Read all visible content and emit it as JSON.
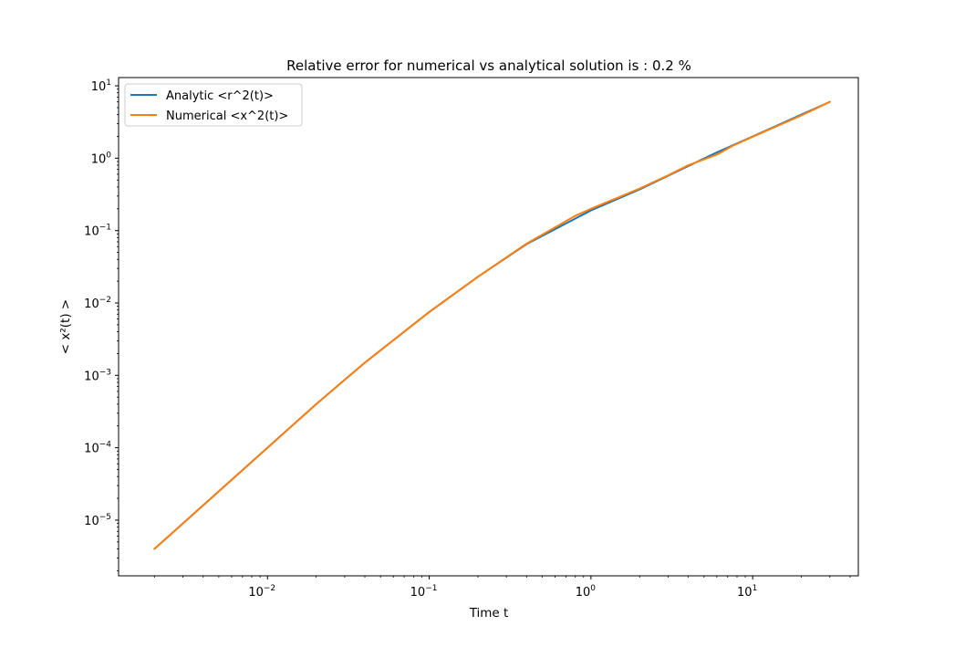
{
  "chart_data": {
    "type": "line",
    "title": "Relative error for numerical vs analytical solution is : 0.2 %",
    "xlabel": "Time t",
    "ylabel": "< x²(t) >",
    "xscale": "log",
    "yscale": "log",
    "xlim": [
      0.0012,
      45
    ],
    "ylim": [
      1.7e-06,
      13
    ],
    "x_ticks": [
      {
        "value": 0.01,
        "base": "10",
        "exp": "−2"
      },
      {
        "value": 0.1,
        "base": "10",
        "exp": "−1"
      },
      {
        "value": 1,
        "base": "10",
        "exp": "0"
      },
      {
        "value": 10,
        "base": "10",
        "exp": "1"
      }
    ],
    "y_ticks": [
      {
        "value": 1e-05,
        "base": "10",
        "exp": "−5"
      },
      {
        "value": 0.0001,
        "base": "10",
        "exp": "−4"
      },
      {
        "value": 0.001,
        "base": "10",
        "exp": "−3"
      },
      {
        "value": 0.01,
        "base": "10",
        "exp": "−2"
      },
      {
        "value": 0.1,
        "base": "10",
        "exp": "−1"
      },
      {
        "value": 1,
        "base": "10",
        "exp": "0"
      },
      {
        "value": 10,
        "base": "10",
        "exp": "1"
      }
    ],
    "grid": false,
    "legend_position": "top-left",
    "series": [
      {
        "name": "Analytic <r^2(t)>",
        "color": "#1f77b4",
        "x": [
          0.002,
          0.004,
          0.01,
          0.02,
          0.04,
          0.1,
          0.2,
          0.4,
          1,
          2,
          4,
          6,
          10,
          20,
          30
        ],
        "y": [
          4e-06,
          1.6e-05,
          0.0001,
          0.0004,
          0.0015,
          0.0075,
          0.023,
          0.065,
          0.19,
          0.37,
          0.78,
          1.2,
          2.0,
          4.0,
          6.0
        ]
      },
      {
        "name": "Numerical <x^2(t)>",
        "color": "#ff7f0e",
        "x": [
          0.002,
          0.004,
          0.01,
          0.02,
          0.04,
          0.1,
          0.2,
          0.4,
          0.8,
          1,
          2,
          3,
          4,
          6,
          7.5,
          10,
          20,
          30
        ],
        "y": [
          4e-06,
          1.6e-05,
          0.0001,
          0.0004,
          0.0015,
          0.0075,
          0.023,
          0.066,
          0.16,
          0.2,
          0.38,
          0.58,
          0.8,
          1.12,
          1.48,
          1.98,
          3.9,
          6.0
        ]
      }
    ]
  }
}
